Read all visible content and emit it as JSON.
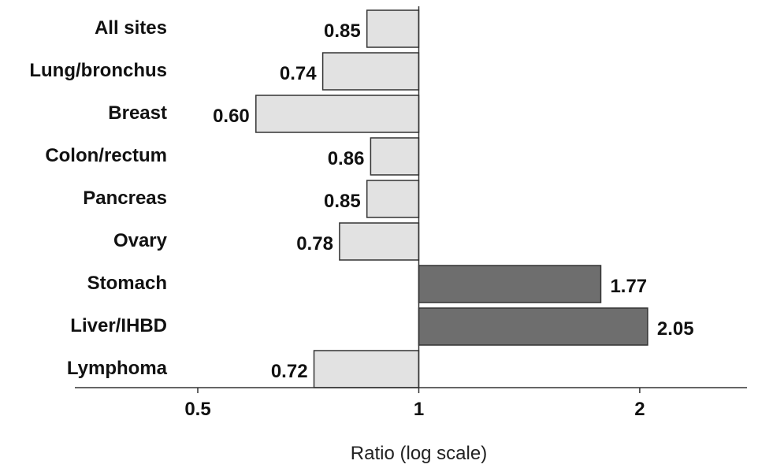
{
  "chart_data": {
    "type": "bar",
    "orientation": "horizontal",
    "scale": "log",
    "baseline": 1,
    "categories": [
      "All sites",
      "Lung/bronchus",
      "Breast",
      "Colon/rectum",
      "Pancreas",
      "Ovary",
      "Stomach",
      "Liver/IHBD",
      "Lymphoma"
    ],
    "values": [
      0.85,
      0.74,
      0.6,
      0.86,
      0.85,
      0.78,
      1.77,
      2.05,
      0.72
    ],
    "value_labels": [
      "0.85",
      "0.74",
      "0.60",
      "0.86",
      "0.85",
      "0.78",
      "1.77",
      "2.05",
      "0.72"
    ],
    "x_ticks": [
      0.5,
      1,
      2
    ],
    "x_tick_labels": [
      "0.5",
      "1",
      "2"
    ],
    "xlabel": "Ratio (log scale)",
    "ylabel": "",
    "title": "",
    "xlim": [
      0.34,
      2.8
    ],
    "grid": false,
    "colors": {
      "below_one_fill": "#e2e2e2",
      "above_one_fill": "#6e6e6e",
      "bar_stroke": "#333333",
      "axis": "#333333"
    }
  }
}
